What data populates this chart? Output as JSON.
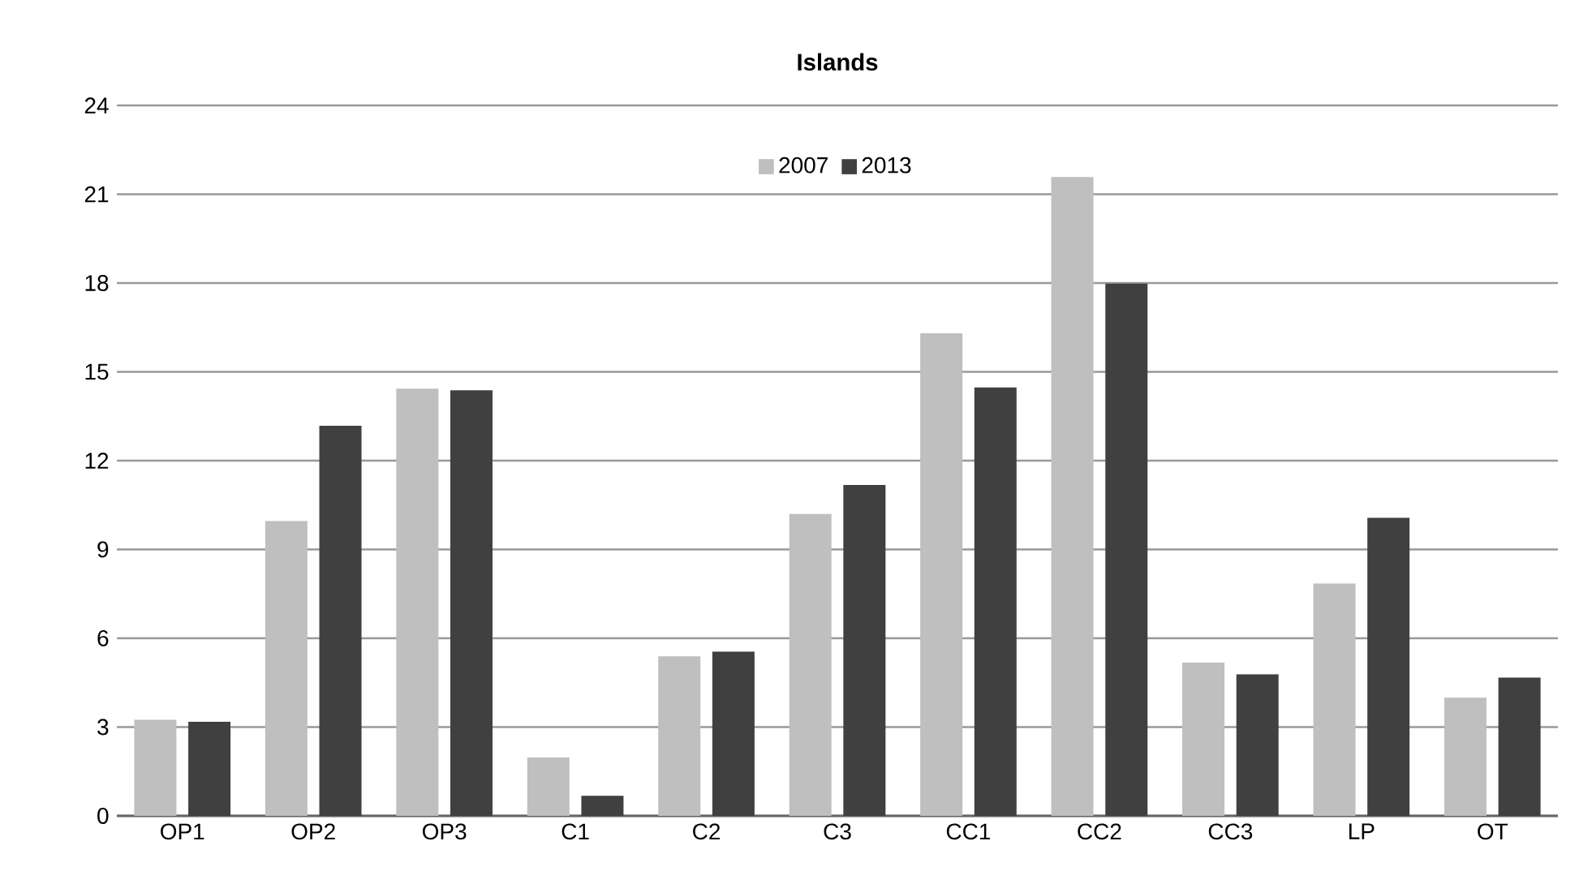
{
  "chart_data": {
    "type": "bar",
    "title": "Islands",
    "categories": [
      "OP1",
      "OP2",
      "OP3",
      "C1",
      "C2",
      "C3",
      "CC1",
      "CC2",
      "CC3",
      "LP",
      "OT"
    ],
    "series": [
      {
        "name": "2007",
        "color": "#bfbfbf",
        "values": [
          3.25,
          9.96,
          14.43,
          1.97,
          5.39,
          10.2,
          16.3,
          21.58,
          5.18,
          7.85,
          3.99
        ]
      },
      {
        "name": "2013",
        "color": "#404040",
        "values": [
          3.18,
          13.18,
          14.38,
          0.68,
          5.55,
          11.18,
          14.47,
          17.98,
          4.78,
          10.07,
          4.67
        ]
      }
    ],
    "ylim": [
      0,
      24
    ],
    "yticks": [
      0,
      3,
      6,
      9,
      12,
      15,
      18,
      21,
      24
    ],
    "grid": "y",
    "legend": "top"
  }
}
